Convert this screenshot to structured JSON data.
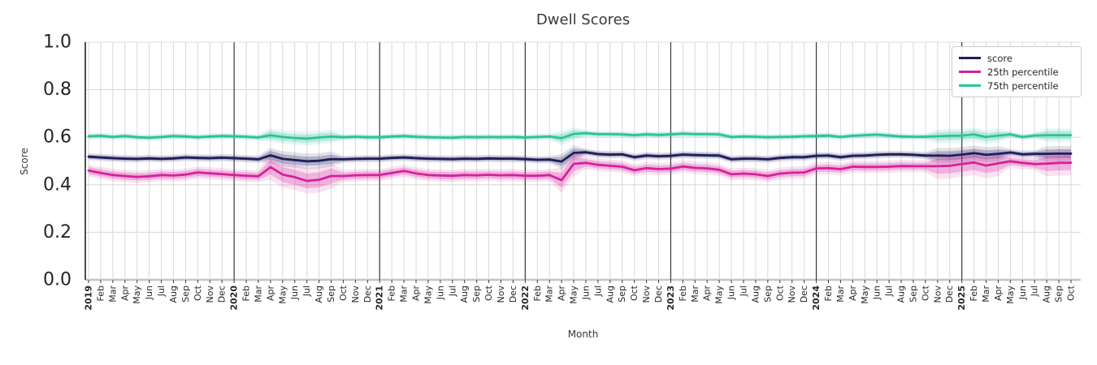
{
  "title": "Dwell Scores",
  "xlabel": "Month",
  "ylabel": "Score",
  "legend": {
    "items": [
      {
        "label": "score",
        "color": "#1f1d5c"
      },
      {
        "label": "25th percentile",
        "color": "#d5219b"
      },
      {
        "label": "75th percentile",
        "color": "#2cc39a"
      }
    ]
  },
  "colors": {
    "grid": "#dcdcdc",
    "zero_line": "#c4c4c4",
    "spine": "#3a3a3a",
    "year_line": "#3a3a3a",
    "tick_text": "#262626"
  },
  "chart_data": {
    "type": "line",
    "title": "Dwell Scores",
    "xlabel": "Month",
    "ylabel": "Score",
    "ylim": [
      0.0,
      1.0
    ],
    "yticks": [
      "0.0",
      "0.2",
      "0.4",
      "0.6",
      "0.8",
      "1.0"
    ],
    "grid": true,
    "legend_position": "upper right",
    "x_tick_labels": [
      "2019",
      "Feb",
      "Mar",
      "Apr",
      "May",
      "Jun",
      "Jul",
      "Aug",
      "Sep",
      "Oct",
      "Nov",
      "Dec",
      "2020",
      "Feb",
      "Mar",
      "Apr",
      "May",
      "Jun",
      "Jul",
      "Aug",
      "Sep",
      "Oct",
      "Nov",
      "Dec",
      "2021",
      "Feb",
      "Mar",
      "Apr",
      "May",
      "Jun",
      "Jul",
      "Aug",
      "Sep",
      "Oct",
      "Nov",
      "Dec",
      "2022",
      "Feb",
      "Mar",
      "Apr",
      "May",
      "Jun",
      "Jul",
      "Aug",
      "Sep",
      "Oct",
      "Nov",
      "Dec",
      "2023",
      "Feb",
      "Mar",
      "Apr",
      "May",
      "Jun",
      "Jul",
      "Aug",
      "Sep",
      "Oct",
      "Nov",
      "Dec",
      "2024",
      "Feb",
      "Mar",
      "Apr",
      "May",
      "Jun",
      "Jul",
      "Aug",
      "Sep",
      "Oct",
      "Nov",
      "Dec",
      "2025",
      "Feb",
      "Mar",
      "Apr",
      "May",
      "Jun",
      "Jul",
      "Aug",
      "Sep",
      "Oct"
    ],
    "year_start_indices": [
      0,
      12,
      24,
      36,
      48,
      60,
      72
    ],
    "series": [
      {
        "name": "score",
        "color": "#1f1d5c",
        "band_halfwidth": 0.009,
        "values": [
          0.518,
          0.515,
          0.512,
          0.51,
          0.509,
          0.511,
          0.509,
          0.511,
          0.515,
          0.513,
          0.512,
          0.514,
          0.512,
          0.51,
          0.507,
          0.524,
          0.509,
          0.504,
          0.499,
          0.501,
          0.508,
          0.507,
          0.509,
          0.51,
          0.51,
          0.513,
          0.515,
          0.512,
          0.51,
          0.509,
          0.508,
          0.51,
          0.509,
          0.511,
          0.51,
          0.51,
          0.508,
          0.505,
          0.506,
          0.498,
          0.534,
          0.537,
          0.529,
          0.527,
          0.528,
          0.516,
          0.523,
          0.52,
          0.522,
          0.527,
          0.525,
          0.524,
          0.523,
          0.507,
          0.51,
          0.51,
          0.507,
          0.513,
          0.516,
          0.516,
          0.522,
          0.523,
          0.516,
          0.522,
          0.523,
          0.526,
          0.528,
          0.528,
          0.526,
          0.523,
          0.523,
          0.522,
          0.527,
          0.533,
          0.526,
          0.53,
          0.536,
          0.528,
          0.53,
          0.53,
          0.531,
          0.531
        ]
      },
      {
        "name": "25th percentile",
        "color": "#d5219b",
        "band_halfwidth": 0.015,
        "values": [
          0.46,
          0.45,
          0.441,
          0.437,
          0.433,
          0.436,
          0.441,
          0.439,
          0.443,
          0.452,
          0.448,
          0.445,
          0.441,
          0.438,
          0.436,
          0.474,
          0.443,
          0.432,
          0.416,
          0.421,
          0.437,
          0.437,
          0.44,
          0.441,
          0.441,
          0.45,
          0.458,
          0.448,
          0.441,
          0.439,
          0.438,
          0.441,
          0.44,
          0.442,
          0.44,
          0.441,
          0.438,
          0.438,
          0.441,
          0.419,
          0.488,
          0.492,
          0.484,
          0.48,
          0.476,
          0.461,
          0.47,
          0.466,
          0.468,
          0.477,
          0.471,
          0.469,
          0.463,
          0.444,
          0.447,
          0.444,
          0.437,
          0.447,
          0.451,
          0.452,
          0.469,
          0.47,
          0.466,
          0.476,
          0.475,
          0.475,
          0.476,
          0.479,
          0.478,
          0.478,
          0.478,
          0.48,
          0.487,
          0.494,
          0.481,
          0.49,
          0.499,
          0.492,
          0.487,
          0.489,
          0.492,
          0.493
        ]
      },
      {
        "name": "75th percentile",
        "color": "#2cc39a",
        "band_halfwidth": 0.008,
        "values": [
          0.604,
          0.606,
          0.601,
          0.605,
          0.6,
          0.598,
          0.601,
          0.605,
          0.603,
          0.6,
          0.603,
          0.605,
          0.604,
          0.602,
          0.599,
          0.609,
          0.601,
          0.597,
          0.594,
          0.599,
          0.603,
          0.6,
          0.602,
          0.6,
          0.6,
          0.603,
          0.605,
          0.602,
          0.6,
          0.599,
          0.598,
          0.601,
          0.6,
          0.601,
          0.6,
          0.601,
          0.599,
          0.601,
          0.603,
          0.596,
          0.614,
          0.617,
          0.613,
          0.613,
          0.612,
          0.609,
          0.612,
          0.61,
          0.612,
          0.615,
          0.613,
          0.613,
          0.612,
          0.601,
          0.603,
          0.602,
          0.6,
          0.601,
          0.602,
          0.604,
          0.605,
          0.607,
          0.601,
          0.606,
          0.609,
          0.611,
          0.607,
          0.603,
          0.602,
          0.602,
          0.604,
          0.606,
          0.607,
          0.612,
          0.601,
          0.607,
          0.612,
          0.601,
          0.607,
          0.609,
          0.609,
          0.609
        ]
      }
    ],
    "band_wide_indices": [
      15,
      16,
      17,
      18,
      19,
      20,
      39,
      40,
      70,
      71,
      72,
      73,
      74,
      75,
      79,
      80,
      81
    ],
    "band_wide_factor": 2.1
  }
}
